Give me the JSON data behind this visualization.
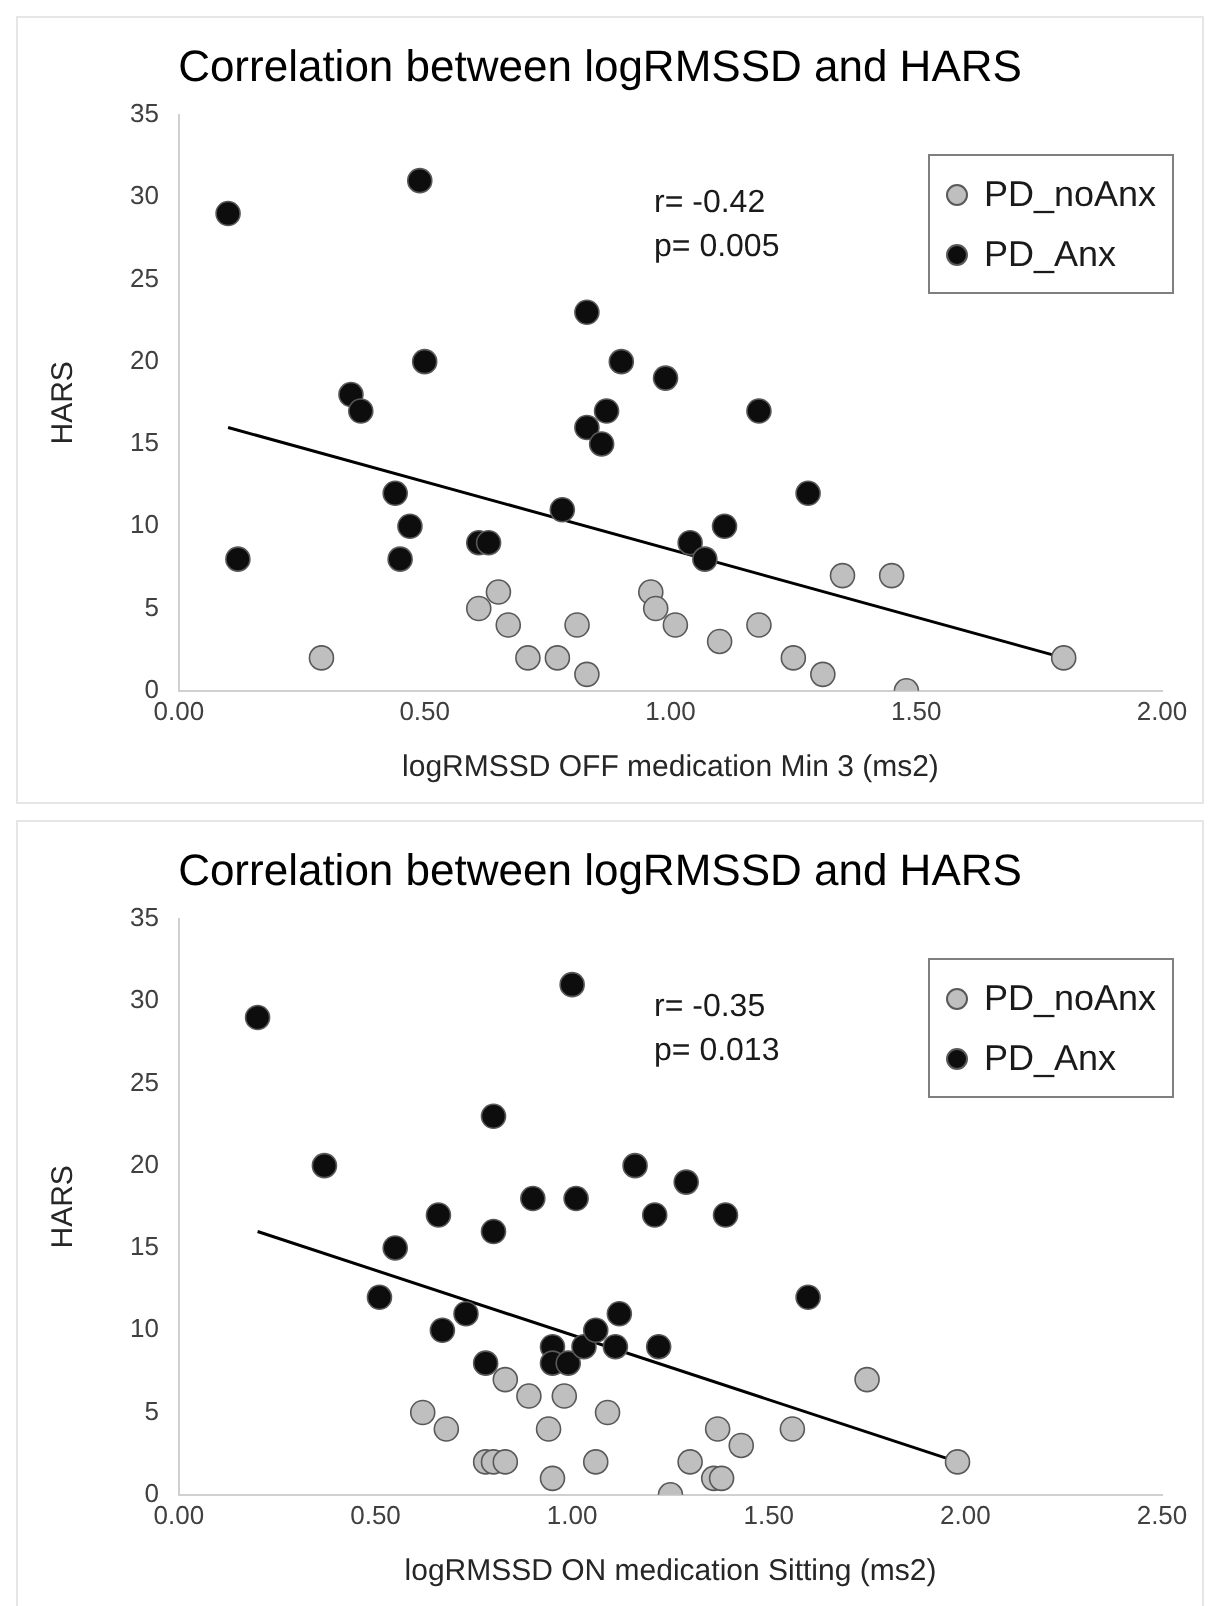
{
  "chart_data": [
    {
      "type": "scatter",
      "title": "Correlation between logRMSSD and HARS",
      "xlabel": "logRMSSD OFF medication Min 3 (ms2)",
      "ylabel": "HARS",
      "annotations": [
        "r= -0.42",
        "p= 0.005"
      ],
      "legend": "top right",
      "marker": "circle",
      "xlim": [
        0,
        2
      ],
      "xticks": [
        {
          "value": 0,
          "label": "0.00"
        },
        {
          "value": 0.5,
          "label": "0.50"
        },
        {
          "value": 1,
          "label": "1.00"
        },
        {
          "value": 1.5,
          "label": "1.50"
        },
        {
          "value": 2,
          "label": "2.00"
        }
      ],
      "ylim": [
        0,
        35
      ],
      "yticks": [
        0,
        5,
        10,
        15,
        20,
        25,
        30,
        35
      ],
      "series": [
        {
          "name": "PD_noAnx",
          "color": "#bfbfbf",
          "x": [
            0.29,
            0.61,
            0.65,
            0.67,
            0.71,
            0.77,
            0.81,
            0.83,
            0.96,
            0.97,
            1.01,
            1.1,
            1.18,
            1.25,
            1.31,
            1.35,
            1.45,
            1.48,
            1.8
          ],
          "values": [
            2,
            5,
            6,
            4,
            2,
            2,
            4,
            1,
            6,
            5,
            4,
            3,
            4,
            2,
            1,
            7,
            7,
            0,
            2
          ]
        },
        {
          "name": "PD_Anx",
          "color": "#0d0d0d",
          "x": [
            0.1,
            0.49,
            0.12,
            0.5,
            0.35,
            0.37,
            0.44,
            0.47,
            0.45,
            0.61,
            0.63,
            0.78,
            0.83,
            0.83,
            0.86,
            0.87,
            0.9,
            0.99,
            1.18,
            1.28,
            1.11,
            1.04,
            1.07
          ],
          "values": [
            29,
            31,
            8,
            20,
            18,
            17,
            12,
            10,
            8,
            9,
            9,
            11,
            23,
            16,
            15,
            17,
            20,
            19,
            17,
            12,
            10,
            9,
            8
          ]
        },
        {
          "type": "line",
          "color": "#000000",
          "marker": "none",
          "x": [
            0.1,
            1.8
          ],
          "values": [
            16,
            2
          ]
        }
      ]
    },
    {
      "type": "scatter",
      "title": "Correlation between logRMSSD and HARS",
      "xlabel": "logRMSSD ON medication Sitting (ms2)",
      "ylabel": "HARS",
      "annotations": [
        "r= -0.35",
        "p= 0.013"
      ],
      "legend": "top right",
      "marker": "circle",
      "xlim": [
        0,
        2.5
      ],
      "xticks": [
        {
          "value": 0,
          "label": "0.00"
        },
        {
          "value": 0.5,
          "label": "0.50"
        },
        {
          "value": 1,
          "label": "1.00"
        },
        {
          "value": 1.5,
          "label": "1.50"
        },
        {
          "value": 2,
          "label": "2.00"
        },
        {
          "value": 2.5,
          "label": "2.50"
        }
      ],
      "ylim": [
        0,
        35
      ],
      "yticks": [
        0,
        5,
        10,
        15,
        20,
        25,
        30,
        35
      ],
      "series": [
        {
          "name": "PD_noAnx",
          "color": "#bfbfbf",
          "x": [
            0.62,
            0.68,
            0.83,
            0.89,
            0.98,
            0.94,
            0.78,
            0.8,
            0.83,
            0.95,
            1.06,
            1.09,
            1.3,
            1.25,
            1.37,
            1.43,
            1.36,
            1.38,
            1.56,
            1.75,
            1.98
          ],
          "values": [
            5,
            4,
            7,
            6,
            6,
            4,
            2,
            2,
            2,
            1,
            2,
            5,
            2,
            0,
            4,
            3,
            1,
            1,
            4,
            7,
            2
          ]
        },
        {
          "name": "PD_Anx",
          "color": "#0d0d0d",
          "x": [
            0.2,
            1.0,
            0.37,
            0.8,
            0.9,
            1.01,
            0.66,
            0.8,
            0.55,
            0.51,
            0.73,
            0.67,
            0.78,
            0.95,
            0.95,
            0.99,
            1.03,
            1.06,
            1.11,
            1.12,
            1.16,
            1.29,
            1.21,
            1.39,
            1.6,
            1.22
          ],
          "values": [
            29,
            31,
            20,
            23,
            18,
            18,
            17,
            16,
            15,
            12,
            11,
            10,
            8,
            9,
            8,
            8,
            9,
            10,
            9,
            11,
            20,
            19,
            17,
            17,
            12,
            9
          ]
        },
        {
          "type": "line",
          "color": "#000000",
          "marker": "none",
          "x": [
            0.2,
            1.98
          ],
          "values": [
            16,
            2
          ]
        }
      ]
    }
  ]
}
